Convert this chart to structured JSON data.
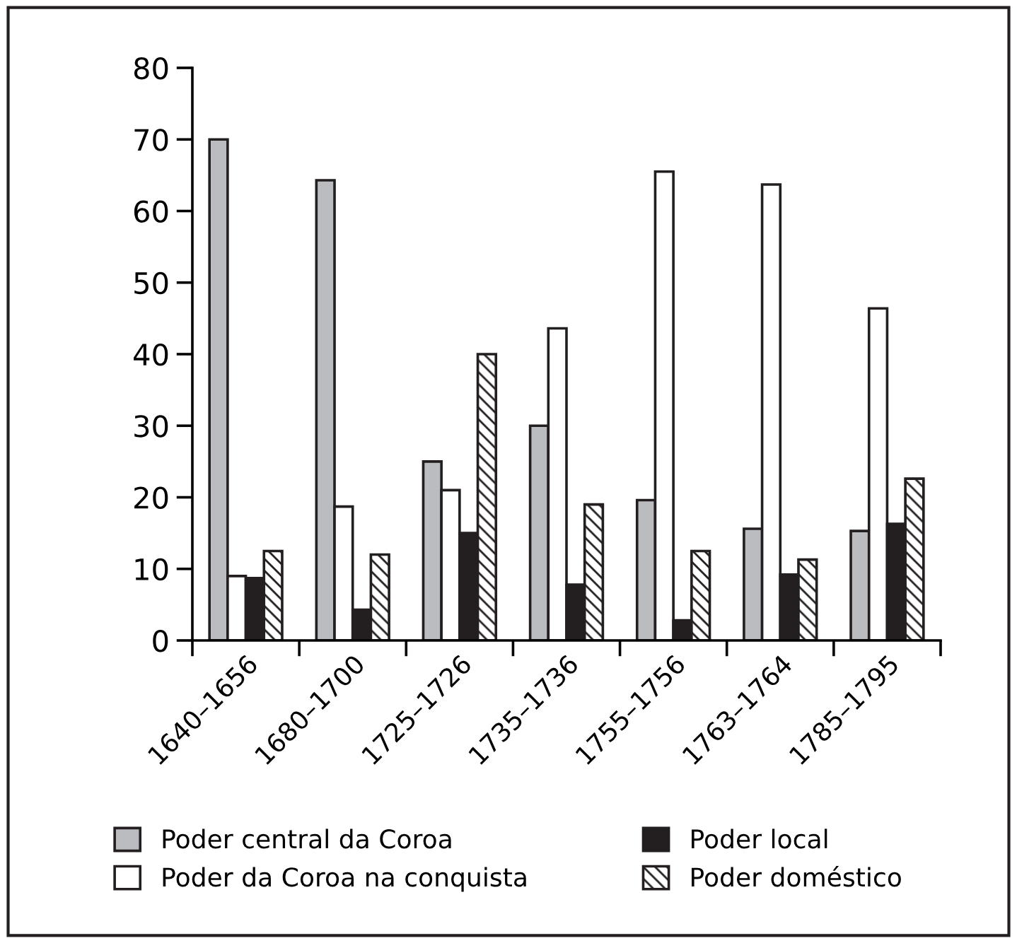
{
  "chart_data": {
    "type": "bar",
    "categories": [
      "1640–1656",
      "1680–1700",
      "1725–1726",
      "1735–1736",
      "1755–1756",
      "1763–1764",
      "1785–1795"
    ],
    "series": [
      {
        "name": "Poder central da Coroa",
        "color": "#bbbcc0",
        "values": [
          70,
          64.3,
          25,
          30,
          19.6,
          15.6,
          15.3
        ]
      },
      {
        "name": "Poder da Coroa na conquista",
        "color": "#ffffff",
        "values": [
          9,
          18.7,
          21,
          43.6,
          65.5,
          63.7,
          46.4
        ]
      },
      {
        "name": "Poder local",
        "color": "#231f20",
        "values": [
          8.7,
          4.3,
          15,
          7.8,
          2.8,
          9.2,
          16.3
        ]
      },
      {
        "name": "Poder doméstico",
        "color": "#231f20",
        "values": [
          12.5,
          12,
          40,
          19,
          12.5,
          11.3,
          22.6
        ]
      }
    ],
    "ylim": [
      0,
      80
    ],
    "yticks": [
      0,
      10,
      20,
      30,
      40,
      50,
      60,
      70,
      80
    ],
    "grid": false,
    "legend": "bottom"
  }
}
